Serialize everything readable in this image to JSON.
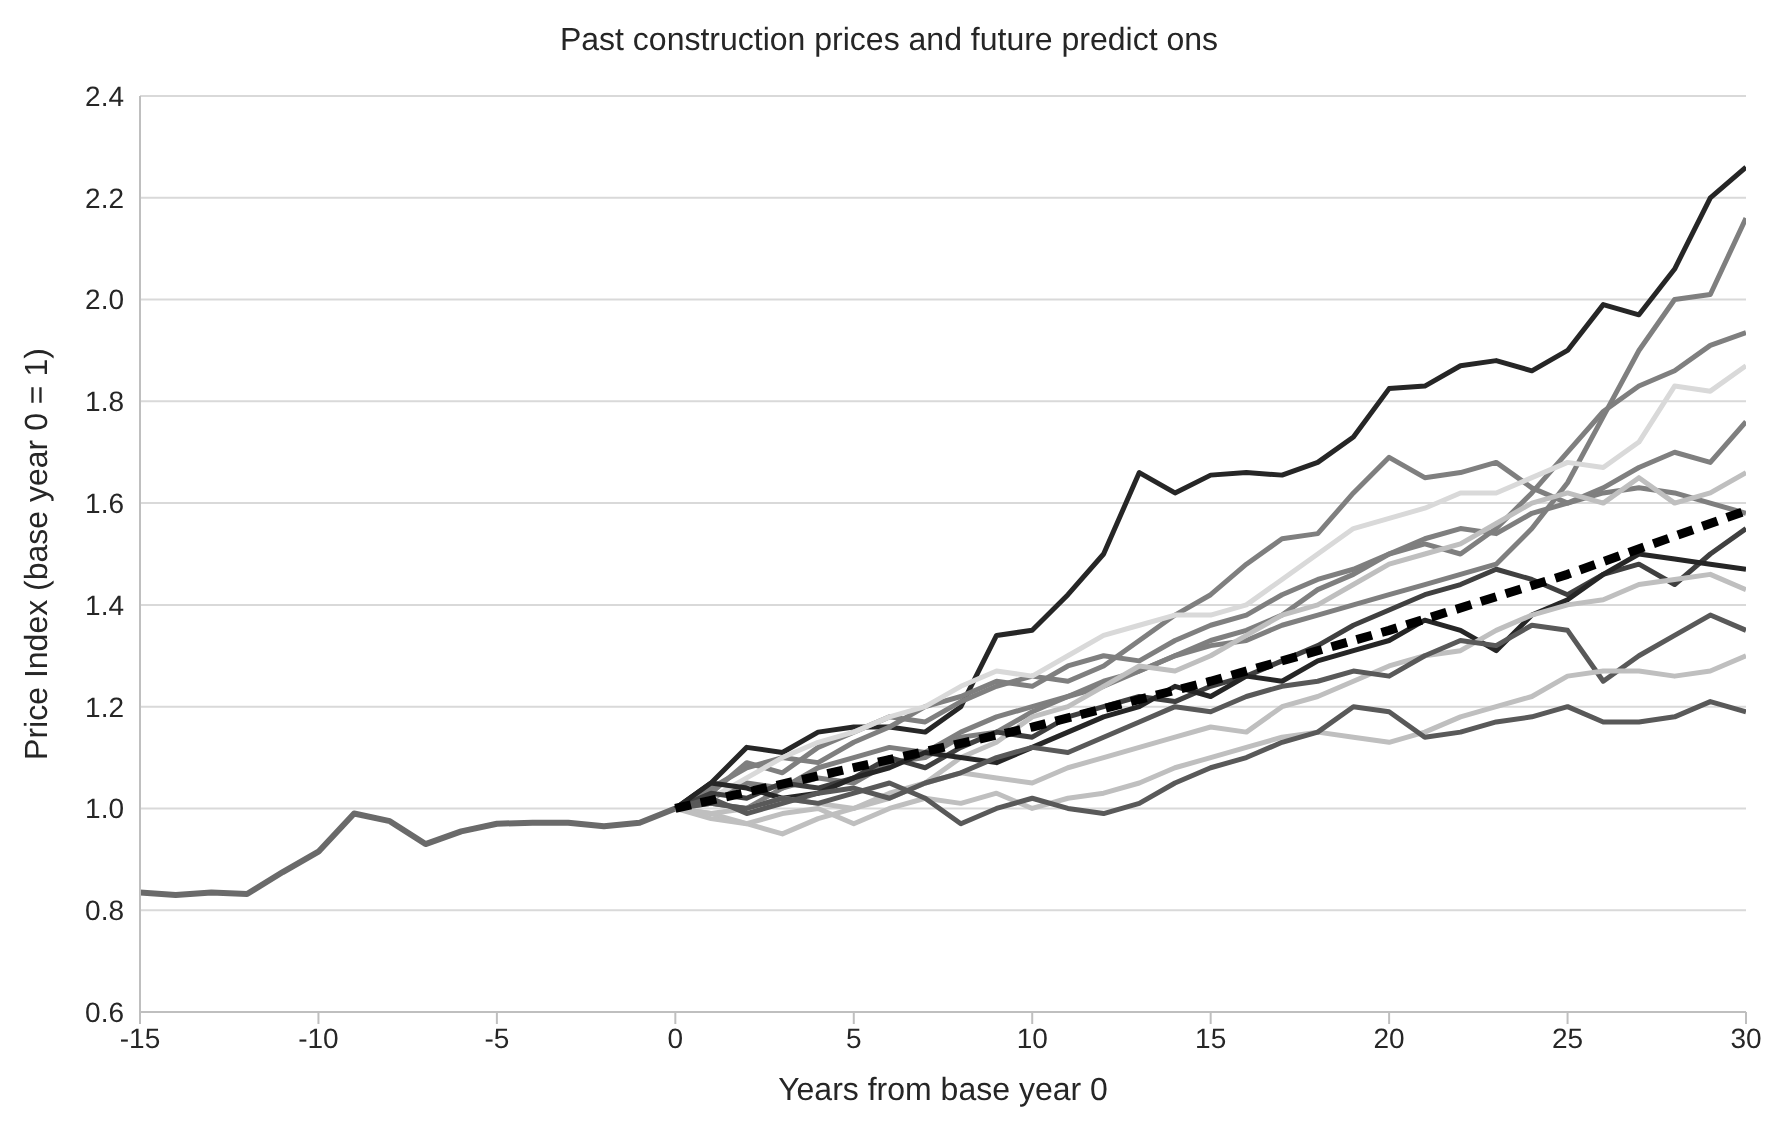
{
  "chart_data": {
    "type": "line",
    "title": "Past construction prices and future predict ons",
    "xlabel": "Years from base year 0",
    "ylabel": "Price Index (base year 0 = 1)",
    "xlim": [
      -15,
      30
    ],
    "xticks": [
      -15,
      -10,
      -5,
      0,
      5,
      10,
      15,
      20,
      25,
      30
    ],
    "ylim": [
      0.6,
      2.4
    ],
    "yticks": [
      {
        "value": 0.6,
        "label": "0.6"
      },
      {
        "value": 0.8,
        "label": "0.8"
      },
      {
        "value": 1,
        "label": "1.0"
      },
      {
        "value": 1.2,
        "label": "1.2"
      },
      {
        "value": 1.4,
        "label": "1.4"
      },
      {
        "value": 1.6,
        "label": "1.6"
      },
      {
        "value": 1.8,
        "label": "1.8"
      },
      {
        "value": 2,
        "label": "2.0"
      },
      {
        "value": 2.2,
        "label": "2.2"
      },
      {
        "value": 2.4,
        "label": "2.4"
      }
    ],
    "grid": "y",
    "marker": "none",
    "series": [
      {
        "color": "#6a6a6a",
        "x": [
          -15,
          -14,
          -13,
          -12,
          -11,
          -10,
          -9,
          -8,
          -7,
          -6,
          -5,
          -4,
          -3,
          -2,
          -1,
          0
        ],
        "values": [
          0.835,
          0.83,
          0.835,
          0.832,
          0.875,
          0.915,
          0.99,
          0.975,
          0.93,
          0.955,
          0.97,
          0.972,
          0.972,
          0.965,
          0.972,
          1.0
        ]
      },
      {
        "color": "#262626",
        "x": [
          0,
          1,
          2,
          3,
          4,
          5,
          6,
          7,
          8,
          9,
          10,
          11,
          12,
          13,
          14,
          15,
          16,
          17,
          18,
          19,
          20,
          21,
          22,
          23,
          24,
          25,
          26,
          27,
          28,
          29,
          30
        ],
        "values": [
          1.0,
          1.05,
          1.12,
          1.11,
          1.15,
          1.16,
          1.16,
          1.15,
          1.2,
          1.34,
          1.35,
          1.42,
          1.5,
          1.66,
          1.62,
          1.655,
          1.66,
          1.655,
          1.68,
          1.73,
          1.825,
          1.83,
          1.87,
          1.88,
          1.86,
          1.9,
          1.99,
          1.97,
          2.06,
          2.2,
          2.26
        ]
      },
      {
        "color": "#7f7f7f",
        "x": [
          0,
          1,
          2,
          3,
          4,
          5,
          6,
          7,
          8,
          9,
          10,
          11,
          12,
          13,
          14,
          15,
          16,
          17,
          18,
          19,
          20,
          21,
          22,
          23,
          24,
          25,
          26,
          27,
          28,
          29,
          30
        ],
        "values": [
          1.0,
          1.02,
          1.05,
          1.04,
          1.08,
          1.1,
          1.12,
          1.11,
          1.15,
          1.18,
          1.2,
          1.22,
          1.25,
          1.27,
          1.3,
          1.32,
          1.33,
          1.36,
          1.38,
          1.4,
          1.42,
          1.44,
          1.46,
          1.48,
          1.55,
          1.64,
          1.77,
          1.9,
          2.0,
          2.01,
          2.16
        ]
      },
      {
        "color": "#7f7f7f",
        "x": [
          0,
          1,
          2,
          3,
          4,
          5,
          6,
          7,
          8,
          9,
          10,
          11,
          12,
          13,
          14,
          15,
          16,
          17,
          18,
          19,
          20,
          21,
          22,
          23,
          24,
          25,
          26,
          27,
          28,
          29,
          30
        ],
        "values": [
          1.0,
          1.04,
          1.08,
          1.1,
          1.09,
          1.13,
          1.16,
          1.2,
          1.22,
          1.25,
          1.24,
          1.28,
          1.3,
          1.29,
          1.33,
          1.36,
          1.38,
          1.42,
          1.45,
          1.47,
          1.5,
          1.52,
          1.5,
          1.55,
          1.62,
          1.7,
          1.78,
          1.83,
          1.86,
          1.91,
          1.935
        ]
      },
      {
        "color": "#7f7f7f",
        "x": [
          0,
          1,
          2,
          3,
          4,
          5,
          6,
          7,
          8,
          9,
          10,
          11,
          12,
          13,
          14,
          15,
          16,
          17,
          18,
          19,
          20,
          21,
          22,
          23,
          24,
          25,
          26,
          27,
          28,
          29,
          30
        ],
        "values": [
          1.0,
          1.03,
          1.09,
          1.07,
          1.12,
          1.15,
          1.18,
          1.17,
          1.21,
          1.24,
          1.26,
          1.25,
          1.28,
          1.33,
          1.38,
          1.42,
          1.48,
          1.53,
          1.54,
          1.62,
          1.69,
          1.65,
          1.66,
          1.68,
          1.63,
          1.6,
          1.62,
          1.63,
          1.62,
          1.6,
          1.58
        ]
      },
      {
        "color": "#d9d9d9",
        "x": [
          0,
          1,
          2,
          3,
          4,
          5,
          6,
          7,
          8,
          9,
          10,
          11,
          12,
          13,
          14,
          15,
          16,
          17,
          18,
          19,
          20,
          21,
          22,
          23,
          24,
          25,
          26,
          27,
          28,
          29,
          30
        ],
        "values": [
          1.0,
          1.02,
          1.06,
          1.1,
          1.13,
          1.15,
          1.18,
          1.2,
          1.24,
          1.27,
          1.26,
          1.3,
          1.34,
          1.36,
          1.38,
          1.38,
          1.4,
          1.45,
          1.5,
          1.55,
          1.57,
          1.59,
          1.62,
          1.62,
          1.65,
          1.68,
          1.67,
          1.72,
          1.83,
          1.82,
          1.87
        ]
      },
      {
        "color": "#7f7f7f",
        "x": [
          0,
          1,
          2,
          3,
          4,
          5,
          6,
          7,
          8,
          9,
          10,
          11,
          12,
          13,
          14,
          15,
          16,
          17,
          18,
          19,
          20,
          21,
          22,
          23,
          24,
          25,
          26,
          27,
          28,
          29,
          30
        ],
        "values": [
          1.0,
          1.01,
          1.0,
          1.04,
          1.06,
          1.05,
          1.09,
          1.1,
          1.14,
          1.15,
          1.19,
          1.22,
          1.24,
          1.27,
          1.3,
          1.33,
          1.35,
          1.38,
          1.43,
          1.46,
          1.5,
          1.53,
          1.55,
          1.54,
          1.58,
          1.6,
          1.63,
          1.67,
          1.7,
          1.68,
          1.76
        ]
      },
      {
        "color": "#bfbfbf",
        "x": [
          0,
          1,
          2,
          3,
          4,
          5,
          6,
          7,
          8,
          9,
          10,
          11,
          12,
          13,
          14,
          15,
          16,
          17,
          18,
          19,
          20,
          21,
          22,
          23,
          24,
          25,
          26,
          27,
          28,
          29,
          30
        ],
        "values": [
          1.0,
          0.99,
          0.97,
          0.95,
          0.98,
          1.0,
          1.02,
          1.05,
          1.1,
          1.13,
          1.18,
          1.2,
          1.24,
          1.28,
          1.27,
          1.3,
          1.34,
          1.38,
          1.4,
          1.44,
          1.48,
          1.5,
          1.52,
          1.56,
          1.6,
          1.62,
          1.6,
          1.65,
          1.6,
          1.62,
          1.66
        ]
      },
      {
        "color": "#404040",
        "x": [
          0,
          1,
          2,
          3,
          4,
          5,
          6,
          7,
          8,
          9,
          10,
          11,
          12,
          13,
          14,
          15,
          16,
          17,
          18,
          19,
          20,
          21,
          22,
          23,
          24,
          25,
          26,
          27,
          28,
          29,
          30
        ],
        "values": [
          1.0,
          1.03,
          1.02,
          1.05,
          1.04,
          1.06,
          1.1,
          1.08,
          1.12,
          1.15,
          1.14,
          1.18,
          1.2,
          1.22,
          1.21,
          1.24,
          1.26,
          1.29,
          1.32,
          1.36,
          1.39,
          1.42,
          1.44,
          1.47,
          1.45,
          1.42,
          1.46,
          1.48,
          1.44,
          1.5,
          1.55
        ]
      },
      {
        "color": "#262626",
        "x": [
          0,
          1,
          2,
          3,
          4,
          5,
          6,
          7,
          8,
          9,
          10,
          11,
          12,
          13,
          14,
          15,
          16,
          17,
          18,
          19,
          20,
          21,
          22,
          23,
          24,
          25,
          26,
          27,
          28,
          29,
          30
        ],
        "values": [
          1.0,
          1.05,
          1.04,
          1.02,
          1.03,
          1.06,
          1.08,
          1.11,
          1.1,
          1.09,
          1.12,
          1.15,
          1.18,
          1.2,
          1.24,
          1.22,
          1.26,
          1.25,
          1.29,
          1.31,
          1.33,
          1.37,
          1.35,
          1.31,
          1.38,
          1.41,
          1.46,
          1.5,
          1.49,
          1.48,
          1.47
        ]
      },
      {
        "color": "#bfbfbf",
        "x": [
          0,
          1,
          2,
          3,
          4,
          5,
          6,
          7,
          8,
          9,
          10,
          11,
          12,
          13,
          14,
          15,
          16,
          17,
          18,
          19,
          20,
          21,
          22,
          23,
          24,
          25,
          26,
          27,
          28,
          29,
          30
        ],
        "values": [
          1.0,
          0.99,
          1.0,
          1.02,
          1.01,
          1.0,
          1.03,
          1.05,
          1.07,
          1.06,
          1.05,
          1.08,
          1.1,
          1.12,
          1.14,
          1.16,
          1.15,
          1.2,
          1.22,
          1.25,
          1.28,
          1.3,
          1.31,
          1.35,
          1.38,
          1.4,
          1.41,
          1.44,
          1.45,
          1.46,
          1.43
        ]
      },
      {
        "color": "#595959",
        "x": [
          0,
          1,
          2,
          3,
          4,
          5,
          6,
          7,
          8,
          9,
          10,
          11,
          12,
          13,
          14,
          15,
          16,
          17,
          18,
          19,
          20,
          21,
          22,
          23,
          24,
          25,
          26,
          27,
          28,
          29,
          30
        ],
        "values": [
          1.0,
          1.02,
          0.99,
          1.01,
          1.03,
          1.04,
          1.02,
          1.05,
          1.07,
          1.1,
          1.12,
          1.11,
          1.14,
          1.17,
          1.2,
          1.19,
          1.22,
          1.24,
          1.25,
          1.27,
          1.26,
          1.3,
          1.33,
          1.32,
          1.36,
          1.35,
          1.25,
          1.3,
          1.34,
          1.38,
          1.35
        ]
      },
      {
        "color": "#bfbfbf",
        "x": [
          0,
          1,
          2,
          3,
          4,
          5,
          6,
          7,
          8,
          9,
          10,
          11,
          12,
          13,
          14,
          15,
          16,
          17,
          18,
          19,
          20,
          21,
          22,
          23,
          24,
          25,
          26,
          27,
          28,
          29,
          30
        ],
        "values": [
          1.0,
          0.98,
          0.97,
          0.99,
          1.0,
          0.97,
          1.0,
          1.02,
          1.01,
          1.03,
          1.0,
          1.02,
          1.03,
          1.05,
          1.08,
          1.1,
          1.12,
          1.14,
          1.15,
          1.14,
          1.13,
          1.15,
          1.18,
          1.2,
          1.22,
          1.26,
          1.27,
          1.27,
          1.26,
          1.27,
          1.3
        ]
      },
      {
        "color": "#595959",
        "x": [
          0,
          1,
          2,
          3,
          4,
          5,
          6,
          7,
          8,
          9,
          10,
          11,
          12,
          13,
          14,
          15,
          16,
          17,
          18,
          19,
          20,
          21,
          22,
          23,
          24,
          25,
          26,
          27,
          28,
          29,
          30
        ],
        "values": [
          1.0,
          1.01,
          1.0,
          1.02,
          1.01,
          1.03,
          1.05,
          1.02,
          0.97,
          1.0,
          1.02,
          1.0,
          0.99,
          1.01,
          1.05,
          1.08,
          1.1,
          1.13,
          1.15,
          1.2,
          1.19,
          1.14,
          1.15,
          1.17,
          1.18,
          1.2,
          1.17,
          1.17,
          1.18,
          1.21,
          1.19
        ]
      },
      {
        "color": "#000000",
        "line_style": "dashed",
        "x": [
          0,
          5,
          10,
          15,
          20,
          25,
          30
        ],
        "values": [
          1.0,
          1.08,
          1.16,
          1.25,
          1.35,
          1.46,
          1.585
        ]
      }
    ]
  }
}
